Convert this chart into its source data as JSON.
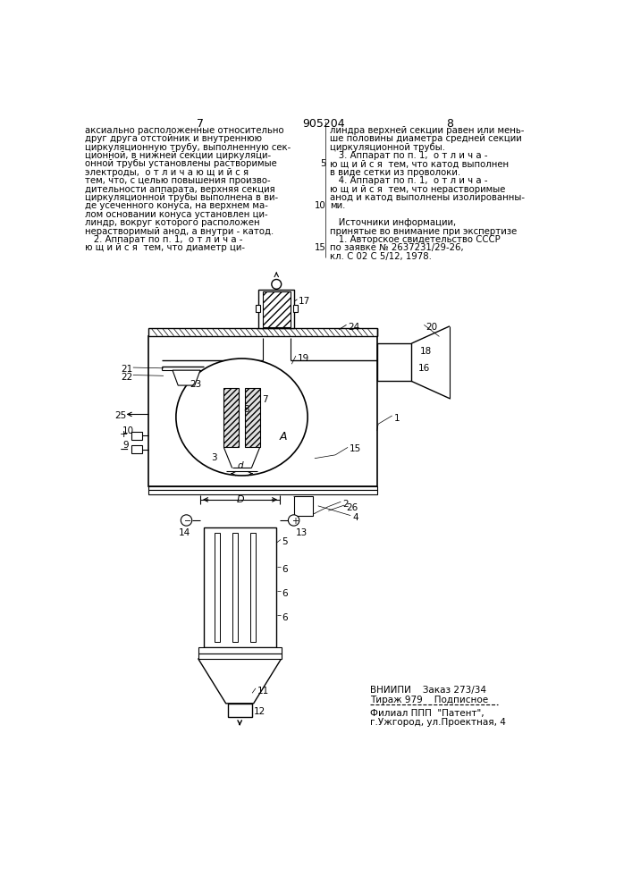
{
  "title_number": "905204",
  "page_left": "7",
  "page_right": "8",
  "background_color": "#ffffff",
  "text_left_col": [
    "аксиально расположенные относительно",
    "друг друга отстойник и внутреннюю",
    "циркуляционную трубу, выполненную сек-",
    "ционной, в нижней секции циркуляци-",
    "онной трубы установлены растворимые",
    "электроды,  о т л и ч а ю щ и й с я",
    "тем, что, с целью повышения произво-",
    "дительности аппарата, верхняя секция",
    "циркуляционной трубы выполнена в ви-",
    "де усеченного конуса, на верхнем ма-",
    "лом основании конуса установлен ци-",
    "линдр, вокруг которого расположен",
    "нерастворимый анод, а внутри - катод.",
    "   2. Аппарат по п. 1,  о т л и ч а -",
    "ю щ и й с я  тем, что диаметр ци-"
  ],
  "text_right_col": [
    "линдра верхней секции равен или мень-",
    "ше половины диаметра средней секции",
    "циркуляционной трубы.",
    "   3. Аппарат по п. 1,  о т л и ч а -",
    "ю щ и й с я  тем, что катод выполнен",
    "в виде сетки из проволоки.",
    "   4. Аппарат по п. 1,  о т л и ч а -",
    "ю щ и й с я  тем, что нерастворимые",
    "анод и катод выполнены изолированны-",
    "ми.",
    "",
    "   Источники информации,",
    "принятые во внимание при экспертизе",
    "   1. Авторское свидетельство СССР",
    "по заявке № 2637231/29-26,",
    "кл. С 02 С 5/12, 1978."
  ],
  "line_numbers": {
    "5": 4,
    "10": 9,
    "15": 14
  },
  "bottom_text_1": "ВНИИПИ    Заказ 273/34",
  "bottom_text_2": "Тираж 979    Подписное",
  "bottom_text_3": "Филиал ППП  \"Патент\",",
  "bottom_text_4": "г.Ужгород, ул.Проектная, 4"
}
